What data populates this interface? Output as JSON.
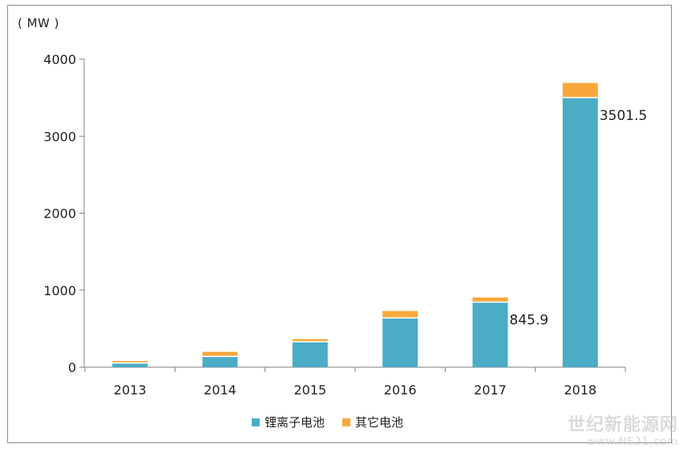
{
  "unit_label": "( MW )",
  "colors": {
    "lithium": "#4bacc6",
    "other": "#f8a83b",
    "axis": "#7f7f7f"
  },
  "legend": [
    {
      "label": "锂离子电池",
      "color": "#4bacc6"
    },
    {
      "label": "其它电池",
      "color": "#f8a83b"
    }
  ],
  "watermark": {
    "title": "世纪新能源网",
    "url": "www.NE21.com"
  },
  "chart_data": {
    "type": "bar",
    "stacked": true,
    "categories": [
      "2013",
      "2014",
      "2015",
      "2016",
      "2017",
      "2018"
    ],
    "series": [
      {
        "name": "锂离子电池",
        "values": [
          55,
          140,
          330,
          640,
          845.9,
          3501.5
        ]
      },
      {
        "name": "其它电池",
        "values": [
          25,
          60,
          35,
          90,
          60,
          190
        ]
      }
    ],
    "data_labels": [
      {
        "category": "2017",
        "text": "845.9"
      },
      {
        "category": "2018",
        "text": "3501.5"
      }
    ],
    "ylabel": "( MW )",
    "ylim": [
      0,
      4000
    ],
    "yticks": [
      0,
      1000,
      2000,
      3000,
      4000
    ],
    "grid": false,
    "legend_position": "bottom"
  }
}
